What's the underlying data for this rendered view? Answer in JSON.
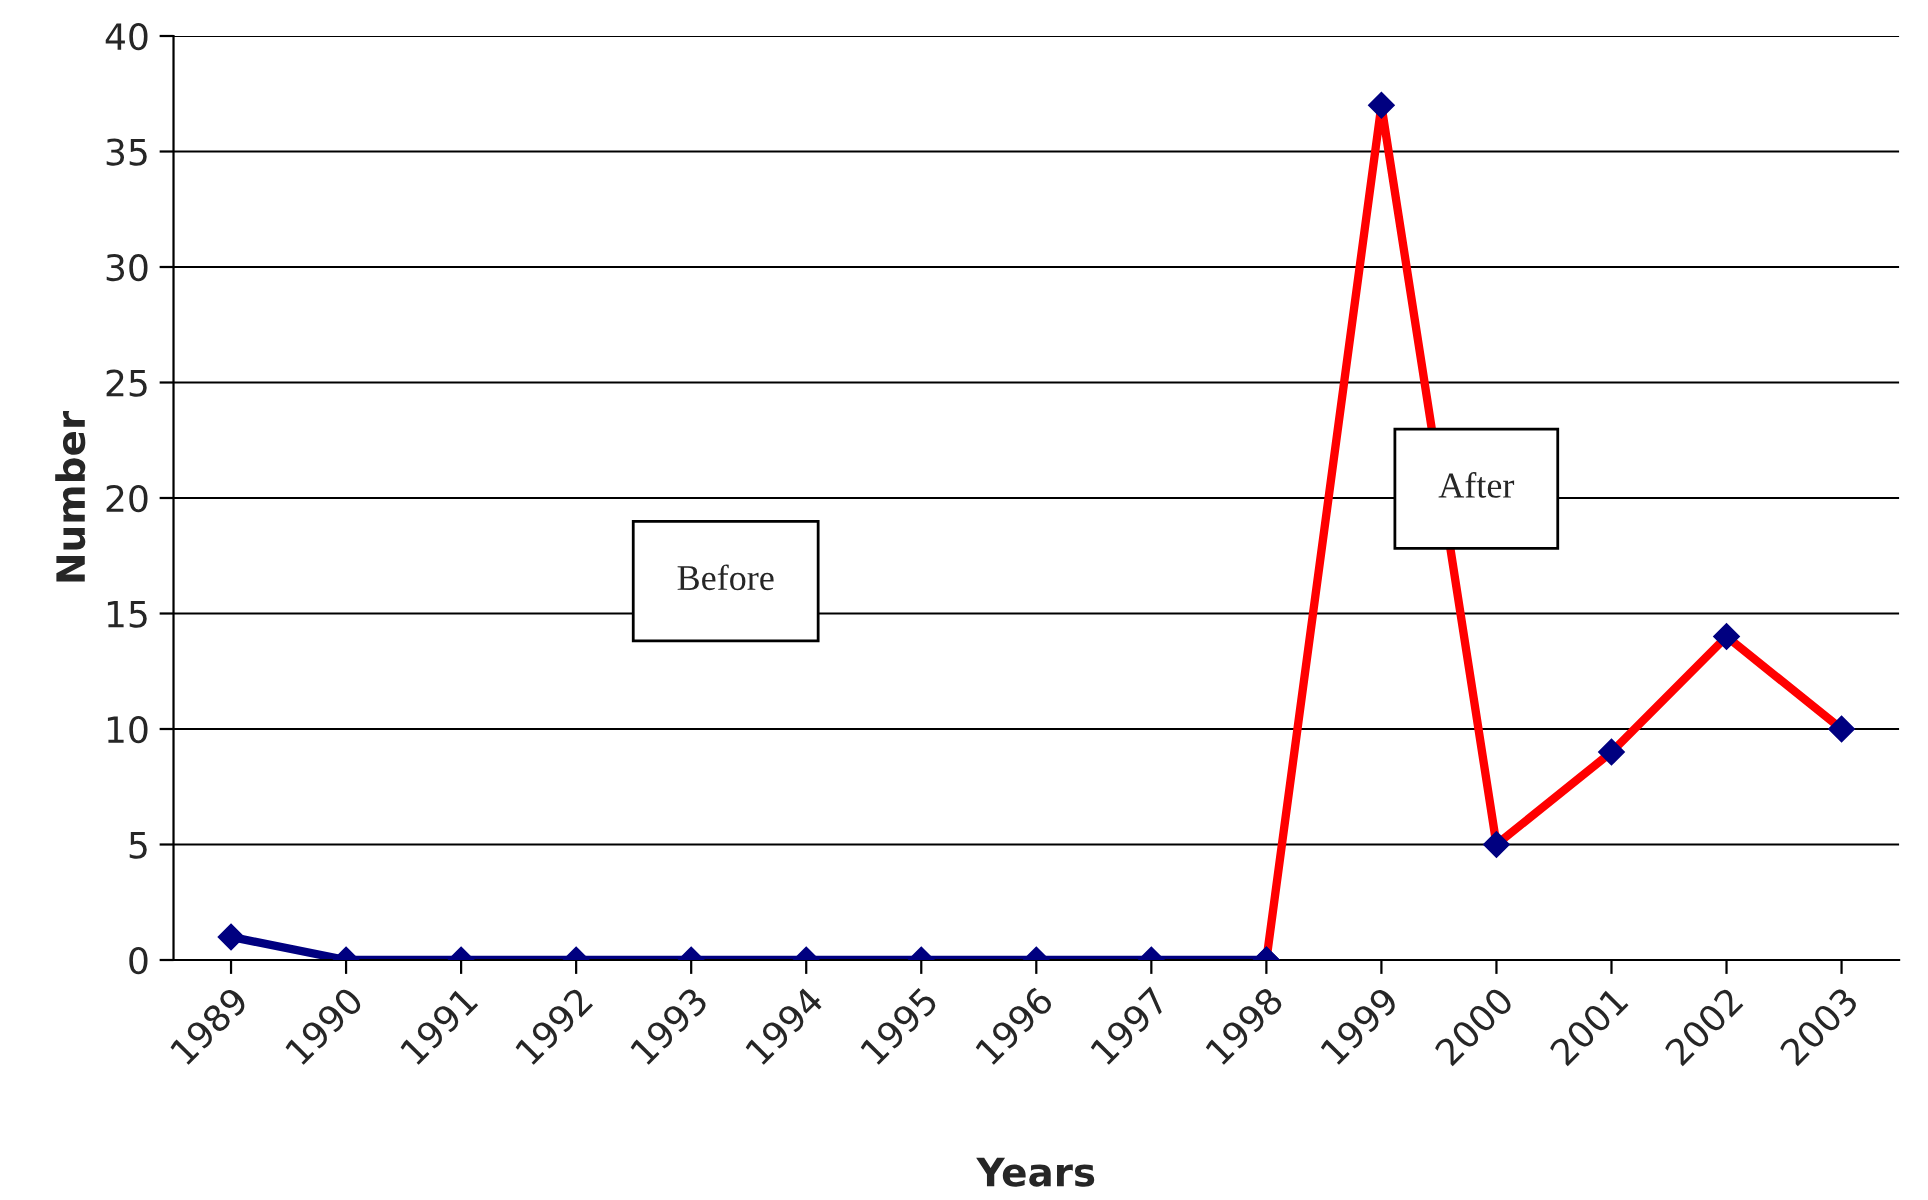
{
  "chart_data": {
    "type": "line",
    "xlabel": "Years",
    "ylabel": "Number",
    "categories": [
      "1989",
      "1990",
      "1991",
      "1992",
      "1993",
      "1994",
      "1995",
      "1996",
      "1997",
      "1998",
      "1999",
      "2000",
      "2001",
      "2002",
      "2003"
    ],
    "series": [
      {
        "color": "#000080",
        "values": [
          1,
          0,
          0,
          0,
          0,
          0,
          0,
          0,
          0,
          0,
          null,
          null,
          null,
          null,
          null
        ]
      },
      {
        "color": "#ff0000",
        "colors": [
          null,
          null,
          null,
          null,
          null,
          null,
          null,
          null,
          null,
          "#000080",
          "#000080",
          "#000080",
          "#000080",
          "#000080",
          "#000080"
        ],
        "values": [
          null,
          null,
          null,
          null,
          null,
          null,
          null,
          null,
          null,
          0,
          37,
          5,
          9,
          14,
          10
        ]
      }
    ],
    "annotations": [
      "Before",
      "After"
    ],
    "ylim": [
      0,
      40
    ],
    "yticks": [
      0,
      5,
      10,
      15,
      20,
      25,
      30,
      35,
      40
    ],
    "grid": "y",
    "marker": "diamond",
    "line_style": "solid",
    "legend": false
  }
}
